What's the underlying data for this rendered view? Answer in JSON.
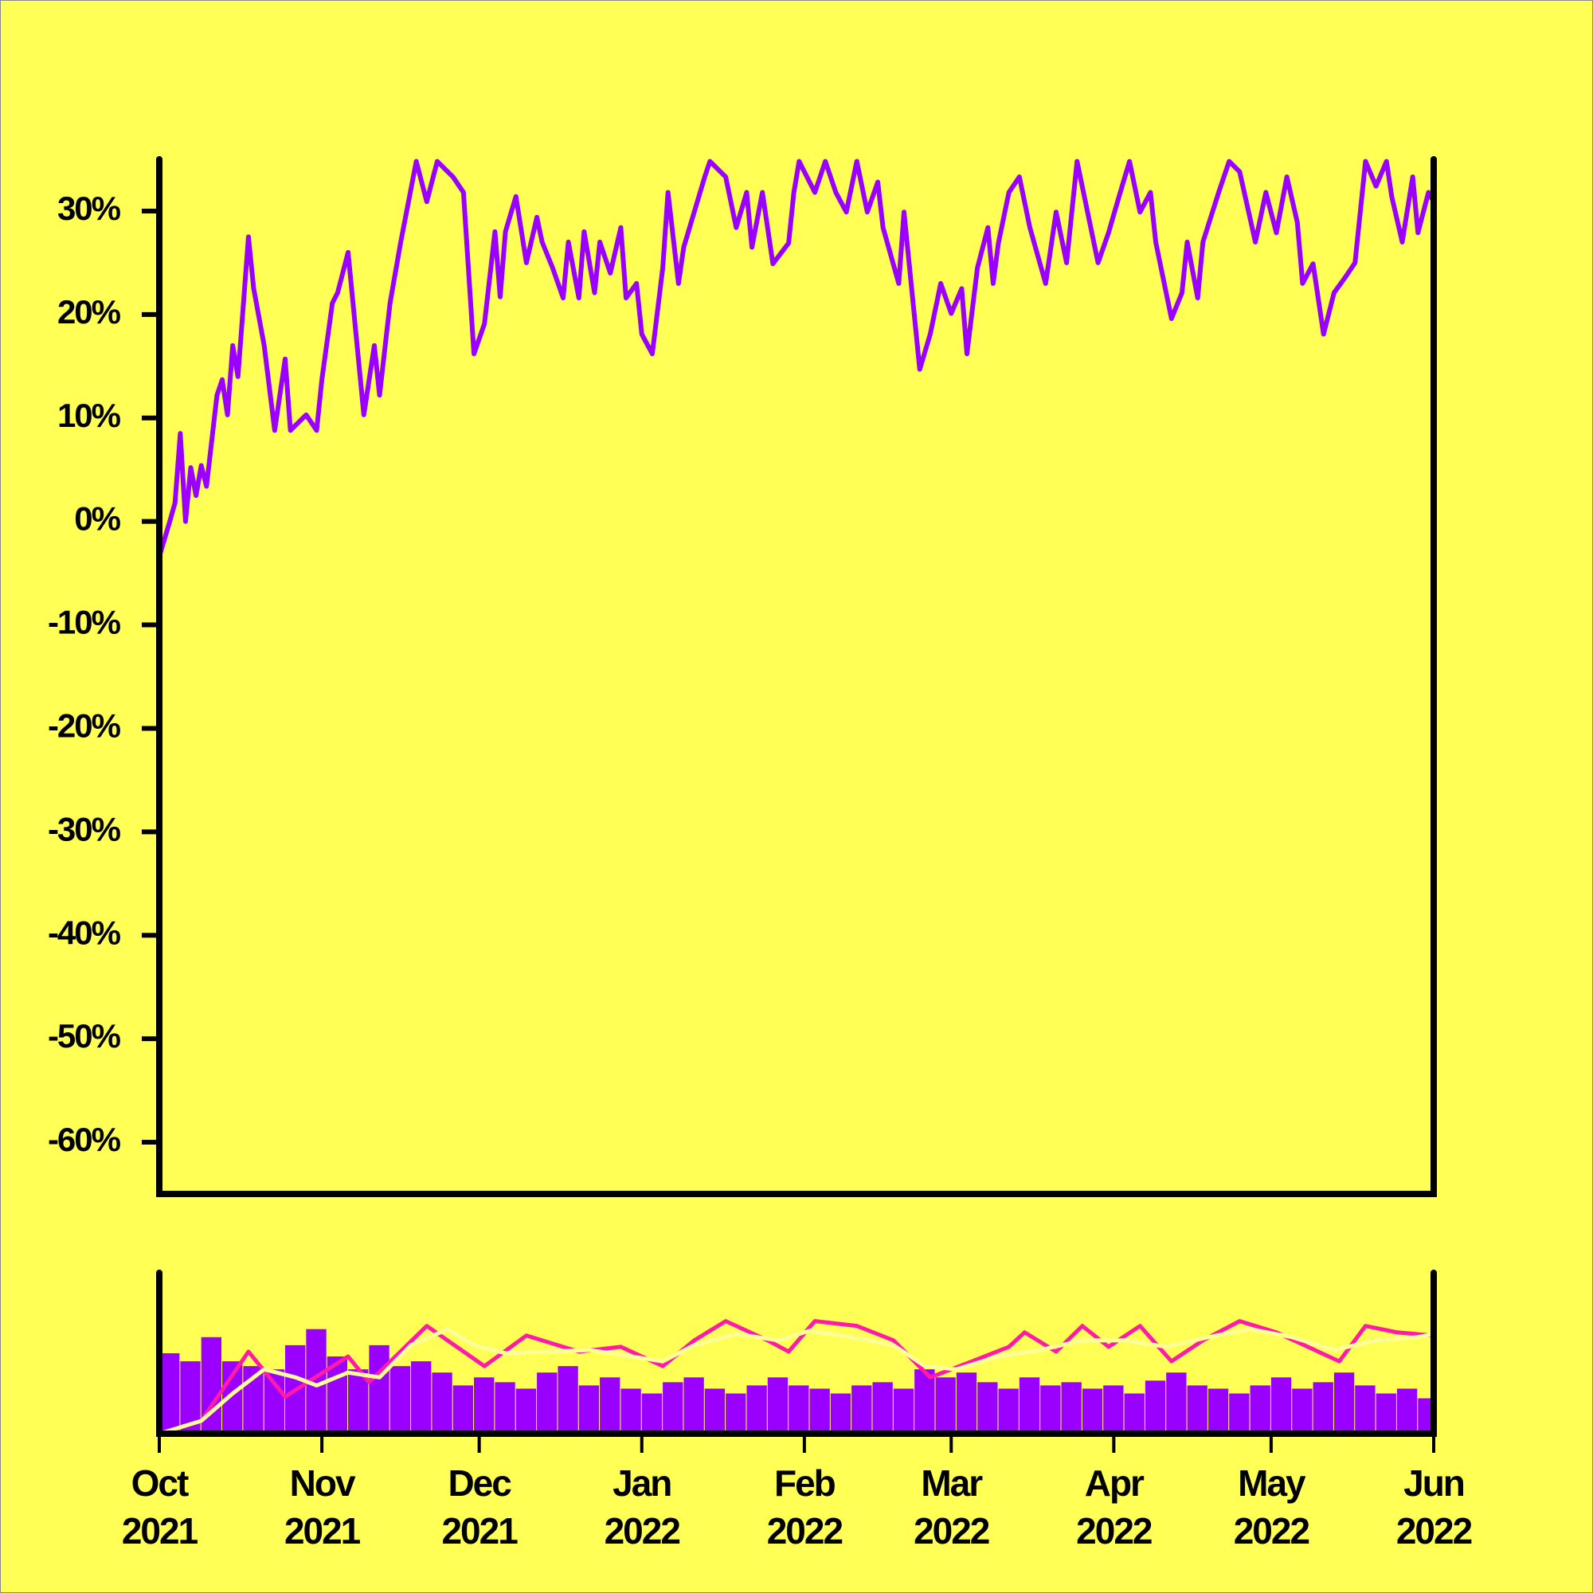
{
  "chart_data": [
    {
      "type": "line",
      "xlim": [
        0,
        243
      ],
      "ylim": [
        -65,
        35
      ],
      "yticks": [
        {
          "value": 30,
          "label": "30%"
        },
        {
          "value": 20,
          "label": "20%"
        },
        {
          "value": 10,
          "label": "10%"
        },
        {
          "value": 0,
          "label": "0%"
        },
        {
          "value": -10,
          "label": "-10%"
        },
        {
          "value": -20,
          "label": "-20%"
        },
        {
          "value": -30,
          "label": "-30%"
        },
        {
          "value": -40,
          "label": "-40%"
        },
        {
          "value": -50,
          "label": "-50%"
        },
        {
          "value": -60,
          "label": "-60%"
        }
      ],
      "color": "#9900ff",
      "x": [
        0,
        2,
        3,
        4,
        5,
        6,
        7,
        8,
        9,
        11,
        12,
        13,
        14,
        15,
        17,
        18,
        20,
        22,
        24,
        25,
        28,
        30,
        31,
        33,
        34,
        36,
        39,
        41,
        42,
        44,
        46,
        49,
        51,
        53,
        56,
        58,
        60,
        62,
        64,
        65,
        66,
        68,
        70,
        72,
        73,
        75,
        77,
        78,
        80,
        81,
        83,
        84,
        86,
        88,
        89,
        91,
        92,
        94,
        96,
        97,
        99,
        100,
        102,
        104,
        105,
        108,
        110,
        112,
        113,
        115,
        117,
        120,
        121,
        122,
        125,
        127,
        129,
        131,
        133,
        135,
        137,
        138,
        141,
        142,
        145,
        147,
        149,
        151,
        153,
        154,
        156,
        158,
        159,
        160,
        162,
        164,
        166,
        169,
        171,
        173,
        175,
        177,
        179,
        181,
        183,
        185,
        187,
        189,
        190,
        193,
        195,
        196,
        198,
        199,
        202,
        204,
        206,
        209,
        211,
        213,
        215,
        217,
        218,
        220,
        222,
        224,
        226,
        228,
        230,
        232,
        234,
        235,
        237,
        239,
        240,
        242,
        243
      ],
      "values": [
        -3.4,
        0,
        1.8,
        8.5,
        0,
        5.2,
        2.5,
        5.4,
        3.4,
        12.2,
        13.7,
        10.3,
        17.0,
        14.0,
        27.5,
        22.5,
        17.0,
        8.8,
        15.7,
        8.8,
        10.3,
        8.8,
        13.7,
        21.1,
        22.1,
        26.0,
        10.3,
        17.0,
        12.2,
        21.1,
        26.9,
        34.8,
        30.9,
        34.8,
        33.3,
        31.8,
        16.2,
        19.1,
        28.0,
        21.7,
        28.0,
        31.4,
        25.0,
        29.4,
        27.0,
        24.5,
        21.6,
        27.0,
        21.6,
        28.0,
        22.1,
        27.0,
        24.0,
        28.4,
        21.6,
        23.0,
        18.1,
        16.2,
        24.5,
        31.8,
        23.0,
        26.5,
        29.9,
        33.3,
        34.8,
        33.3,
        28.4,
        31.8,
        26.5,
        31.8,
        24.9,
        26.9,
        31.8,
        34.8,
        31.8,
        34.8,
        31.8,
        29.9,
        34.8,
        29.9,
        32.8,
        28.4,
        23.0,
        29.9,
        14.7,
        18.1,
        23.0,
        20.1,
        22.5,
        16.2,
        24.5,
        28.4,
        23.0,
        26.9,
        31.8,
        33.3,
        28.4,
        23.0,
        29.9,
        25.0,
        34.8,
        29.9,
        25.0,
        27.9,
        31.4,
        34.8,
        29.9,
        31.8,
        27.0,
        19.6,
        22.1,
        27.0,
        21.6,
        27.0,
        31.8,
        34.8,
        33.8,
        27.0,
        31.8,
        27.9,
        33.3,
        28.9,
        23.0,
        24.9,
        18.1,
        22.1,
        23.5,
        25.0,
        34.8,
        32.4,
        34.8,
        31.4,
        27.0,
        33.3,
        27.9,
        31.8,
        30.9
      ]
    },
    {
      "type": "bar",
      "xlim": [
        0,
        243
      ],
      "ylim": [
        0,
        100
      ],
      "xticks": [
        {
          "value": 0,
          "label": [
            "Oct",
            "2021"
          ]
        },
        {
          "value": 31,
          "label": [
            "Nov",
            "2021"
          ]
        },
        {
          "value": 61,
          "label": [
            "Dec",
            "2021"
          ]
        },
        {
          "value": 92,
          "label": [
            "Jan",
            "2022"
          ]
        },
        {
          "value": 123,
          "label": [
            "Feb",
            "2022"
          ]
        },
        {
          "value": 151,
          "label": [
            "Mar",
            "2022"
          ]
        },
        {
          "value": 182,
          "label": [
            "Apr",
            "2022"
          ]
        },
        {
          "value": 212,
          "label": [
            "May",
            "2022"
          ]
        },
        {
          "value": 243,
          "label": [
            "Jun",
            "2022"
          ]
        }
      ],
      "series": [
        {
          "type": "bar",
          "color": "#9900ff",
          "x": [
            0,
            4,
            8,
            12,
            16,
            20,
            24,
            28,
            32,
            36,
            40,
            44,
            48,
            52,
            56,
            60,
            64,
            68,
            72,
            76,
            80,
            84,
            88,
            92,
            96,
            100,
            104,
            108,
            112,
            116,
            120,
            124,
            128,
            132,
            136,
            140,
            144,
            148,
            152,
            156,
            160,
            164,
            168,
            172,
            176,
            180,
            184,
            188,
            192,
            196,
            200,
            204,
            208,
            212,
            216,
            220,
            224,
            228,
            232,
            236,
            240
          ],
          "values": [
            50,
            45,
            60,
            45,
            42,
            40,
            55,
            65,
            48,
            40,
            55,
            42,
            45,
            38,
            30,
            35,
            32,
            28,
            38,
            42,
            30,
            35,
            28,
            25,
            32,
            35,
            28,
            25,
            30,
            35,
            30,
            28,
            25,
            30,
            32,
            28,
            40,
            35,
            38,
            32,
            28,
            35,
            30,
            32,
            28,
            30,
            25,
            33,
            38,
            30,
            28,
            25,
            30,
            35,
            28,
            32,
            38,
            30,
            25,
            28,
            22
          ]
        },
        {
          "type": "line",
          "color": "#ff1aaa",
          "x": [
            0,
            8,
            17,
            24,
            36,
            40,
            51,
            62,
            70,
            80,
            88,
            96,
            102,
            108,
            116,
            120,
            125,
            133,
            140,
            147,
            155,
            162,
            165,
            171,
            176,
            181,
            187,
            193,
            199,
            206,
            213,
            219,
            225,
            230,
            236,
            243
          ],
          "values": [
            0,
            8,
            51,
            23,
            48,
            32,
            67,
            42,
            61,
            51,
            54,
            42,
            58,
            70,
            58,
            51,
            70,
            67,
            58,
            35,
            45,
            54,
            63,
            51,
            67,
            54,
            67,
            45,
            58,
            70,
            63,
            54,
            45,
            67,
            63,
            61
          ]
        },
        {
          "type": "line",
          "color": "#ffff99",
          "x": [
            0,
            8,
            14,
            20,
            26,
            30,
            36,
            42,
            48,
            55,
            60,
            66,
            74,
            82,
            90,
            96,
            102,
            110,
            118,
            124,
            132,
            140,
            146,
            152,
            160,
            168,
            176,
            184,
            192,
            200,
            208,
            216,
            224,
            232,
            240,
            243
          ],
          "values": [
            0,
            8,
            25,
            40,
            35,
            30,
            38,
            35,
            55,
            65,
            55,
            50,
            51,
            52,
            48,
            45,
            55,
            62,
            58,
            64,
            60,
            55,
            42,
            40,
            48,
            52,
            58,
            58,
            54,
            60,
            65,
            60,
            52,
            58,
            60,
            62
          ]
        }
      ]
    }
  ]
}
